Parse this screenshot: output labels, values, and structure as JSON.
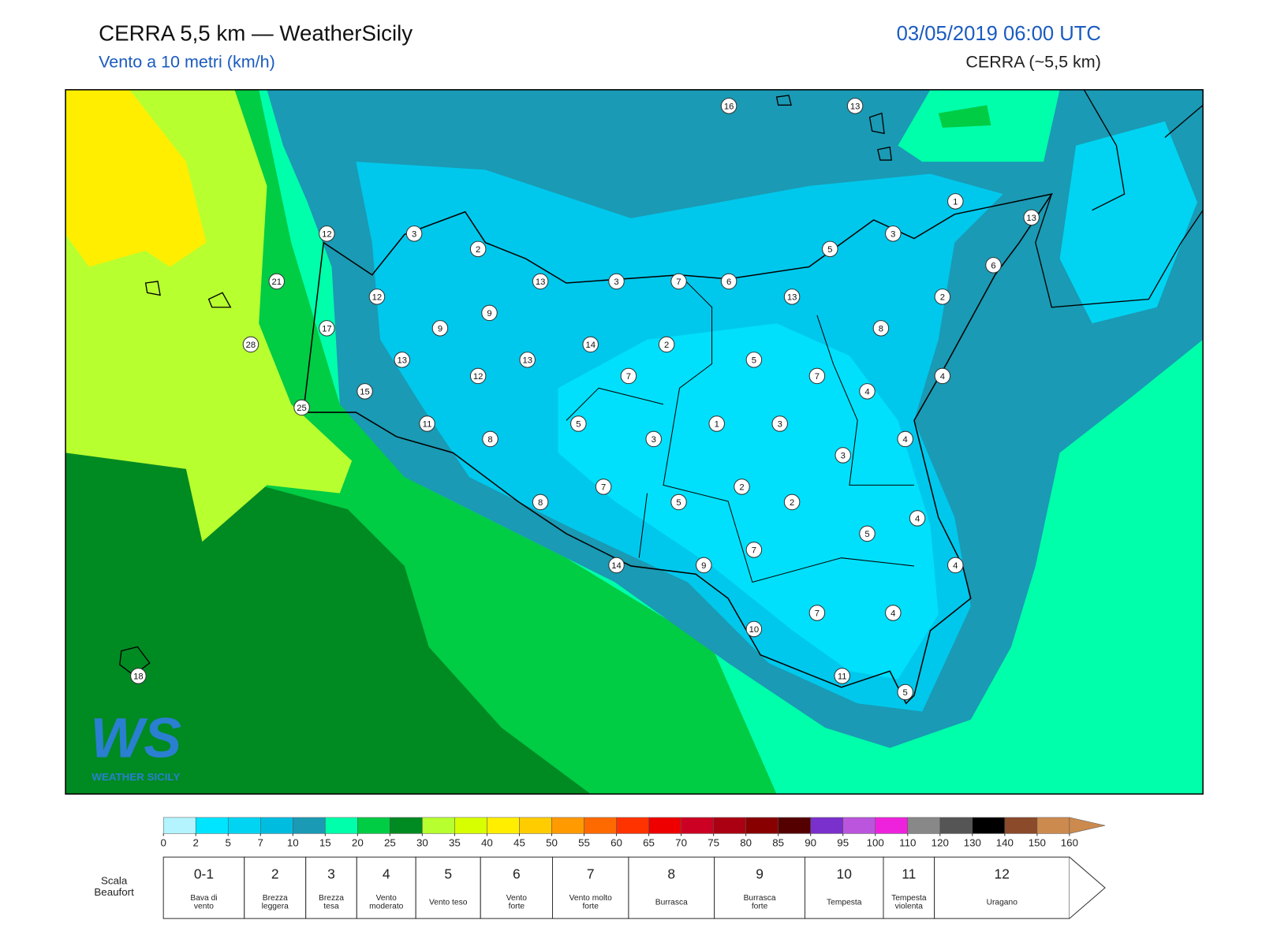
{
  "header": {
    "title": "CERRA 5,5 km — WeatherSicily",
    "subtitle": "Vento a 10 metri (km/h)",
    "datetime": "03/05/2019 06:00 UTC",
    "model": "CERRA (~5,5 km)"
  },
  "map": {
    "stations": [
      16,
      13,
      1,
      13,
      3,
      12,
      3,
      2,
      5,
      6,
      21,
      12,
      13,
      3,
      7,
      6,
      13,
      2,
      9,
      17,
      9,
      8,
      28,
      13,
      13,
      14,
      2,
      5,
      12,
      7,
      7,
      4,
      15,
      4,
      25,
      11,
      5,
      1,
      3,
      8,
      3,
      4,
      3,
      7,
      2,
      8,
      5,
      2,
      4,
      5,
      7,
      14,
      9,
      4,
      7,
      4,
      10,
      18,
      11,
      5
    ]
  },
  "logo": {
    "mark": "WS",
    "text": "WEATHER SICILY"
  },
  "colorbar": {
    "ticks": [
      0,
      2,
      5,
      7,
      10,
      15,
      20,
      25,
      30,
      35,
      40,
      45,
      50,
      55,
      60,
      65,
      70,
      75,
      80,
      85,
      90,
      95,
      100,
      110,
      120,
      130,
      140,
      150,
      160
    ],
    "colors": [
      "#b3f4ff",
      "#00e5ff",
      "#00d4f2",
      "#00bde0",
      "#1a9ab4",
      "#00ffaa",
      "#00cc44",
      "#008a22",
      "#b8ff30",
      "#d8ff00",
      "#ffee00",
      "#ffcc00",
      "#ff9a00",
      "#ff6a00",
      "#ff3300",
      "#ee0000",
      "#cc0022",
      "#aa0011",
      "#880000",
      "#550000",
      "#7a30cc",
      "#bb55dd",
      "#ee22dd",
      "#888888",
      "#555555",
      "#000000",
      "#8b4a2a",
      "#cc8a4e"
    ],
    "extend_color": "#cc8a4e"
  },
  "beaufort": {
    "title": [
      "Scala",
      "Beaufort"
    ],
    "levels": [
      {
        "force": "0-1",
        "desc": [
          "Bava di",
          "vento"
        ]
      },
      {
        "force": "2",
        "desc": [
          "Brezza",
          "leggera"
        ]
      },
      {
        "force": "3",
        "desc": [
          "Brezza",
          "tesa"
        ]
      },
      {
        "force": "4",
        "desc": [
          "Vento",
          "moderato"
        ]
      },
      {
        "force": "5",
        "desc": [
          "Vento teso"
        ]
      },
      {
        "force": "6",
        "desc": [
          "Vento",
          "forte"
        ]
      },
      {
        "force": "7",
        "desc": [
          "Vento molto",
          "forte"
        ]
      },
      {
        "force": "8",
        "desc": [
          "Burrasca"
        ]
      },
      {
        "force": "9",
        "desc": [
          "Burrasca",
          "forte"
        ]
      },
      {
        "force": "10",
        "desc": [
          "Tempesta"
        ]
      },
      {
        "force": "11",
        "desc": [
          "Tempesta",
          "violenta"
        ]
      },
      {
        "force": "12",
        "desc": [
          "Uragano"
        ]
      }
    ]
  }
}
